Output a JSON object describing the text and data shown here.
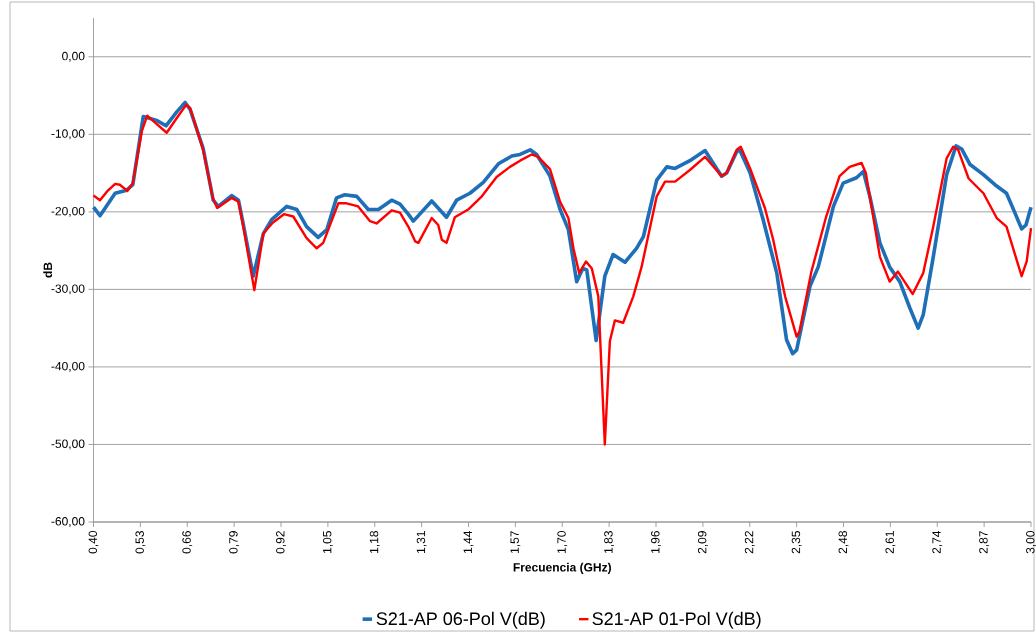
{
  "chart_data": {
    "type": "line",
    "xlabel": "Frecuencia (GHz)",
    "ylabel": "dB",
    "xlim": [
      0.4,
      3.0
    ],
    "ylim": [
      -60,
      5
    ],
    "xticks": [
      {
        "value": 0.4,
        "label": "0,40"
      },
      {
        "value": 0.53,
        "label": "0,53"
      },
      {
        "value": 0.66,
        "label": "0,66"
      },
      {
        "value": 0.79,
        "label": "0,79"
      },
      {
        "value": 0.92,
        "label": "0,92"
      },
      {
        "value": 1.05,
        "label": "1,05"
      },
      {
        "value": 1.18,
        "label": "1,18"
      },
      {
        "value": 1.31,
        "label": "1,31"
      },
      {
        "value": 1.44,
        "label": "1,44"
      },
      {
        "value": 1.57,
        "label": "1,57"
      },
      {
        "value": 1.7,
        "label": "1,70"
      },
      {
        "value": 1.83,
        "label": "1,83"
      },
      {
        "value": 1.96,
        "label": "1,96"
      },
      {
        "value": 2.09,
        "label": "2,09"
      },
      {
        "value": 2.22,
        "label": "2,22"
      },
      {
        "value": 2.35,
        "label": "2,35"
      },
      {
        "value": 2.48,
        "label": "2,48"
      },
      {
        "value": 2.61,
        "label": "2,61"
      },
      {
        "value": 2.74,
        "label": "2,74"
      },
      {
        "value": 2.87,
        "label": "2,87"
      },
      {
        "value": 3.0,
        "label": "3,00"
      }
    ],
    "yticks": [
      {
        "value": 0,
        "label": "0,00"
      },
      {
        "value": -10,
        "label": "-10,00"
      },
      {
        "value": -20,
        "label": "-20,00"
      },
      {
        "value": -30,
        "label": "-30,00"
      },
      {
        "value": -40,
        "label": "-40,00"
      },
      {
        "value": -50,
        "label": "-50,00"
      },
      {
        "value": -60,
        "label": "-60,00"
      }
    ],
    "grid": "y",
    "legend": "bottom",
    "series": [
      {
        "name": "S21-AP 06-Pol V(dB)",
        "color": "#1f6fb8",
        "x": [
          0.4,
          0.418,
          0.46,
          0.492,
          0.509,
          0.538,
          0.575,
          0.601,
          0.631,
          0.654,
          0.668,
          0.704,
          0.732,
          0.746,
          0.783,
          0.802,
          0.815,
          0.843,
          0.871,
          0.894,
          0.936,
          0.964,
          0.991,
          1.023,
          1.047,
          1.074,
          1.097,
          1.13,
          1.162,
          1.19,
          1.227,
          1.25,
          1.273,
          1.287,
          1.338,
          1.379,
          1.407,
          1.444,
          1.481,
          1.523,
          1.56,
          1.583,
          1.611,
          1.629,
          1.666,
          1.694,
          1.717,
          1.74,
          1.757,
          1.768,
          1.794,
          1.818,
          1.841,
          1.874,
          1.906,
          1.925,
          1.962,
          1.99,
          2.013,
          2.054,
          2.096,
          2.142,
          2.156,
          2.184,
          2.193,
          2.221,
          2.257,
          2.295,
          2.322,
          2.339,
          2.35,
          2.387,
          2.41,
          2.452,
          2.479,
          2.516,
          2.535,
          2.553,
          2.581,
          2.608,
          2.636,
          2.664,
          2.687,
          2.701,
          2.729,
          2.766,
          2.792,
          2.808,
          2.831,
          2.868,
          2.9,
          2.932,
          2.956,
          2.974,
          2.986,
          3.0
        ],
        "values": [
          -19.4,
          -20.5,
          -17.6,
          -17.2,
          -16.5,
          -7.7,
          -8.2,
          -8.9,
          -7.1,
          -5.9,
          -6.8,
          -11.8,
          -18.5,
          -19.3,
          -17.9,
          -18.5,
          -21.5,
          -28.3,
          -22.8,
          -21.0,
          -19.3,
          -19.7,
          -21.9,
          -23.3,
          -22.3,
          -18.2,
          -17.8,
          -18.0,
          -19.7,
          -19.7,
          -18.5,
          -19.0,
          -20.3,
          -21.2,
          -18.6,
          -20.7,
          -18.5,
          -17.6,
          -16.2,
          -13.8,
          -12.8,
          -12.6,
          -12.0,
          -12.6,
          -15.4,
          -19.7,
          -22.3,
          -29.0,
          -27.3,
          -27.5,
          -36.6,
          -28.3,
          -25.5,
          -26.5,
          -24.7,
          -23.2,
          -15.9,
          -14.2,
          -14.4,
          -13.4,
          -12.1,
          -15.4,
          -15.0,
          -12.2,
          -12.1,
          -15.0,
          -21.0,
          -27.9,
          -36.5,
          -38.3,
          -37.8,
          -29.6,
          -27.1,
          -19.3,
          -16.3,
          -15.6,
          -14.8,
          -18.0,
          -24.0,
          -27.1,
          -29.0,
          -32.4,
          -35.0,
          -33.3,
          -25.8,
          -15.2,
          -11.5,
          -11.9,
          -13.9,
          -15.2,
          -16.5,
          -17.6,
          -20.2,
          -22.2,
          -21.7,
          -19.4
        ]
      },
      {
        "name": "S21-AP 01-Pol V(dB)",
        "color": "#ff0000",
        "x": [
          0.4,
          0.418,
          0.437,
          0.46,
          0.473,
          0.494,
          0.509,
          0.534,
          0.549,
          0.566,
          0.603,
          0.631,
          0.657,
          0.668,
          0.704,
          0.731,
          0.743,
          0.783,
          0.802,
          0.817,
          0.846,
          0.871,
          0.897,
          0.928,
          0.954,
          0.991,
          1.019,
          1.037,
          1.079,
          1.102,
          1.134,
          1.167,
          1.185,
          1.227,
          1.25,
          1.273,
          1.292,
          1.301,
          1.338,
          1.356,
          1.366,
          1.379,
          1.402,
          1.439,
          1.477,
          1.518,
          1.555,
          1.583,
          1.615,
          1.633,
          1.666,
          1.694,
          1.717,
          1.731,
          1.747,
          1.766,
          1.782,
          1.8,
          1.818,
          1.832,
          1.846,
          1.869,
          1.897,
          1.92,
          1.962,
          1.985,
          2.013,
          2.054,
          2.096,
          2.142,
          2.156,
          2.184,
          2.195,
          2.221,
          2.262,
          2.285,
          2.318,
          2.35,
          2.358,
          2.391,
          2.432,
          2.469,
          2.497,
          2.53,
          2.542,
          2.581,
          2.608,
          2.631,
          2.672,
          2.701,
          2.729,
          2.766,
          2.784,
          2.798,
          2.827,
          2.868,
          2.905,
          2.932,
          2.974,
          2.988,
          3.0
        ],
        "values": [
          -17.9,
          -18.5,
          -17.4,
          -16.4,
          -16.5,
          -17.3,
          -16.3,
          -9.6,
          -7.6,
          -8.3,
          -9.8,
          -7.9,
          -6.2,
          -6.6,
          -12.0,
          -18.2,
          -19.5,
          -18.2,
          -18.7,
          -22.3,
          -30.1,
          -22.8,
          -21.4,
          -20.3,
          -20.6,
          -23.4,
          -24.7,
          -24.0,
          -18.9,
          -18.9,
          -19.3,
          -21.2,
          -21.5,
          -19.8,
          -20.1,
          -21.9,
          -23.8,
          -24.0,
          -20.8,
          -21.7,
          -23.6,
          -24.0,
          -20.7,
          -19.7,
          -18.0,
          -15.5,
          -14.2,
          -13.4,
          -12.6,
          -12.9,
          -14.5,
          -18.7,
          -20.8,
          -24.7,
          -27.9,
          -26.4,
          -27.3,
          -30.9,
          -50.0,
          -36.7,
          -34.0,
          -34.3,
          -30.9,
          -27.1,
          -18.0,
          -16.1,
          -16.1,
          -14.6,
          -12.9,
          -15.4,
          -15.0,
          -12.0,
          -11.6,
          -14.4,
          -19.5,
          -23.6,
          -30.9,
          -36.1,
          -35.4,
          -27.7,
          -20.6,
          -15.4,
          -14.2,
          -13.7,
          -15.0,
          -25.8,
          -29.0,
          -27.7,
          -30.6,
          -27.9,
          -21.9,
          -13.1,
          -11.6,
          -12.0,
          -15.7,
          -17.6,
          -20.8,
          -21.9,
          -28.3,
          -26.4,
          -22.1
        ]
      }
    ]
  }
}
